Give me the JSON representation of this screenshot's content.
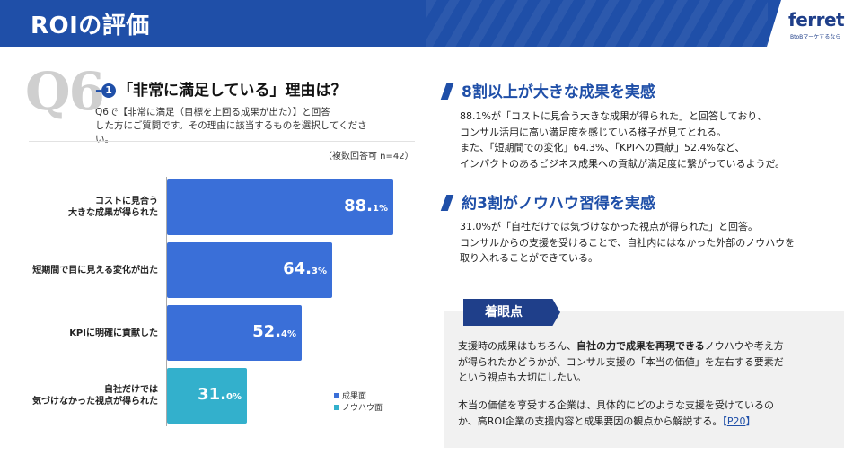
{
  "header": {
    "title": "ROIの評価",
    "logo": "ferret",
    "tagline": "BtoBマーケするなら"
  },
  "question": {
    "number": "Q6",
    "dash": "-",
    "circle": "1",
    "title": "「非常に満足している」理由は？",
    "desc_line1": "Q6で【非常に満足（目標を上回る成果が出た）】と回答",
    "desc_line2": "した方にご質問です。その理由に該当するものを選択してください。",
    "note": "（複数回答可 n=42）"
  },
  "chart_data": {
    "type": "bar",
    "orientation": "horizontal",
    "categories": [
      [
        "コストに見合う",
        "大きな成果が得られた"
      ],
      [
        "短期間で目に見える変化が出た"
      ],
      [
        "KPIに明確に貢献した"
      ],
      [
        "自社だけでは",
        "気づけなかった視点が得られた"
      ]
    ],
    "values": [
      88.1,
      64.3,
      52.4,
      31.0
    ],
    "value_labels": [
      {
        "main": "88.",
        "decimal": "1%"
      },
      {
        "main": "64.",
        "decimal": "3%"
      },
      {
        "main": "52.",
        "decimal": "4%"
      },
      {
        "main": "31.",
        "decimal": "0%"
      }
    ],
    "groups": [
      "成果面",
      "成果面",
      "成果面",
      "ノウハウ面"
    ],
    "colors": {
      "成果面": "#3a6fd8",
      "ノウハウ面": "#33b0cc"
    },
    "xlim": [
      0,
      100
    ],
    "legend": [
      {
        "label": "成果面",
        "color": "#3a6fd8"
      },
      {
        "label": "ノウハウ面",
        "color": "#33b0cc"
      }
    ],
    "legend_position": "bottom-right"
  },
  "section1": {
    "heading": "8割以上が大きな成果を実感",
    "lines": [
      "88.1%が「コストに見合う大きな成果が得られた」と回答しており、",
      "コンサル活用に高い満足度を感じている様子が見てとれる。",
      "また、「短期間での変化」64.3%、「KPIへの貢献」52.4%など、",
      "インパクトのあるビジネス成果への貢献が満足度に繋がっているようだ。"
    ]
  },
  "section2": {
    "heading": "約3割がノウハウ習得を実感",
    "lines": [
      "31.0%が「自社だけでは気づけなかった視点が得られた」と回答。",
      "コンサルからの支援を受けることで、自社内にはなかった外部のノウハウを",
      "取り入れることができている。"
    ]
  },
  "insight": {
    "tag": "着眼点",
    "p1_pre": "支援時の成果はもちろん、",
    "p1_bold": "自社の力で成果を再現できる",
    "p1_post": "ノウハウや考え方",
    "p1_line2": "が得られたかどうかが、コンサル支援の「本当の価値」を左右する要素だ",
    "p1_line3": "という視点も大切にしたい。",
    "p2_line1": "本当の価値を享受する企業は、具体的にどのような支援を受けているの",
    "p2_line2": "か、高ROI企業の支援内容と成果要因の観点から解説する。",
    "ref_open": "【",
    "ref_link": "P20",
    "ref_close": "】"
  },
  "icons": {
    "logo": "ferret-logo",
    "section_marker": "slash-marker-icon"
  }
}
